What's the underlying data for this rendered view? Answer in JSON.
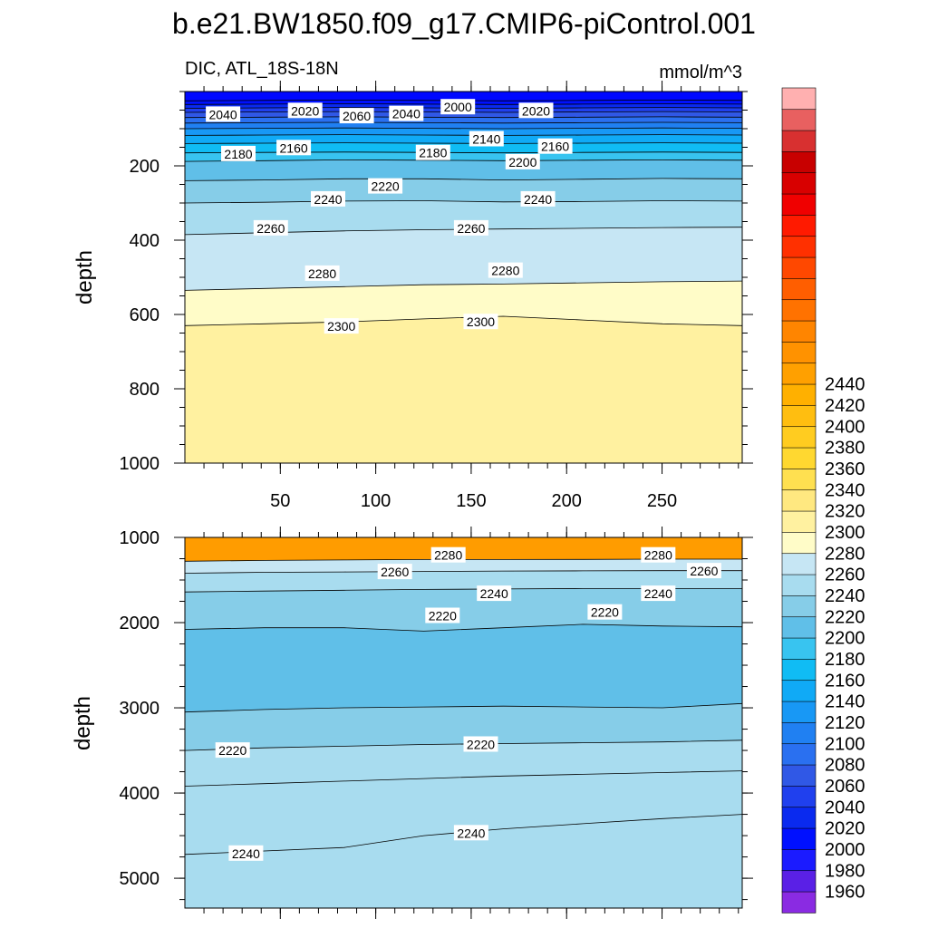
{
  "title": "b.e21.BW1850.f09_g17.CMIP6-piControl.001",
  "subtitle_left": "DIC, ATL_18S-18N",
  "subtitle_right": "mmol/m^3",
  "chart_data": [
    {
      "type": "contour",
      "name": "upper panel",
      "ylabel": "depth",
      "xlim": [
        0,
        292
      ],
      "ylim": [
        1000,
        0
      ],
      "x_ticks": [
        50,
        100,
        150,
        200,
        250
      ],
      "y_ticks": [
        200,
        400,
        600,
        800,
        1000
      ],
      "grid": false,
      "isolines": [
        {
          "value": 2000,
          "depths": [
            25,
            24,
            23,
            24,
            25,
            24,
            23,
            24
          ]
        },
        {
          "value": 2020,
          "depths": [
            35,
            34,
            33,
            34,
            35,
            34,
            33,
            34
          ]
        },
        {
          "value": 2040,
          "depths": [
            45,
            44,
            43,
            44,
            45,
            44,
            43,
            44
          ]
        },
        {
          "value": 2060,
          "depths": [
            56,
            55,
            54,
            55,
            56,
            55,
            54,
            55
          ]
        },
        {
          "value": 2080,
          "depths": [
            70,
            69,
            68,
            69,
            70,
            69,
            68,
            69
          ]
        },
        {
          "value": 2100,
          "depths": [
            85,
            84,
            83,
            84,
            85,
            84,
            83,
            84
          ]
        },
        {
          "value": 2120,
          "depths": [
            100,
            99,
            98,
            99,
            100,
            99,
            98,
            99
          ]
        },
        {
          "value": 2140,
          "depths": [
            118,
            117,
            116,
            117,
            118,
            117,
            116,
            117
          ]
        },
        {
          "value": 2160,
          "depths": [
            140,
            139,
            138,
            139,
            140,
            139,
            138,
            139
          ]
        },
        {
          "value": 2180,
          "depths": [
            165,
            164,
            163,
            164,
            165,
            164,
            163,
            164
          ]
        },
        {
          "value": 2200,
          "depths": [
            188,
            186,
            184,
            185,
            186,
            185,
            184,
            185
          ]
        },
        {
          "value": 2220,
          "depths": [
            240,
            238,
            235,
            235,
            238,
            236,
            234,
            235
          ]
        },
        {
          "value": 2240,
          "depths": [
            300,
            298,
            295,
            294,
            297,
            296,
            294,
            295
          ]
        },
        {
          "value": 2260,
          "depths": [
            385,
            380,
            375,
            372,
            370,
            368,
            366,
            365
          ]
        },
        {
          "value": 2280,
          "depths": [
            535,
            530,
            525,
            520,
            518,
            515,
            512,
            510
          ]
        },
        {
          "value": 2300,
          "depths": [
            630,
            625,
            620,
            612,
            605,
            615,
            625,
            630
          ]
        }
      ],
      "contour_labels": [
        {
          "text": "2040",
          "x": 20,
          "y": 62
        },
        {
          "text": "2020",
          "x": 63,
          "y": 52
        },
        {
          "text": "2060",
          "x": 90,
          "y": 66
        },
        {
          "text": "2040",
          "x": 116,
          "y": 60
        },
        {
          "text": "2000",
          "x": 143,
          "y": 42
        },
        {
          "text": "2020",
          "x": 184,
          "y": 52
        },
        {
          "text": "2180",
          "x": 28,
          "y": 168
        },
        {
          "text": "2160",
          "x": 57,
          "y": 152
        },
        {
          "text": "2180",
          "x": 130,
          "y": 165
        },
        {
          "text": "2140",
          "x": 158,
          "y": 128
        },
        {
          "text": "2200",
          "x": 177,
          "y": 190
        },
        {
          "text": "2160",
          "x": 194,
          "y": 148
        },
        {
          "text": "2220",
          "x": 105,
          "y": 255
        },
        {
          "text": "2240",
          "x": 75,
          "y": 290
        },
        {
          "text": "2240",
          "x": 185,
          "y": 290
        },
        {
          "text": "2260",
          "x": 45,
          "y": 368
        },
        {
          "text": "2260",
          "x": 150,
          "y": 368
        },
        {
          "text": "2280",
          "x": 72,
          "y": 490
        },
        {
          "text": "2280",
          "x": 168,
          "y": 482
        },
        {
          "text": "2300",
          "x": 82,
          "y": 632
        },
        {
          "text": "2300",
          "x": 155,
          "y": 620
        }
      ]
    },
    {
      "type": "contour",
      "name": "lower panel",
      "ylabel": "depth",
      "xlim": [
        0,
        292
      ],
      "ylim": [
        5350,
        1000
      ],
      "x_ticks": [
        50,
        100,
        150,
        200,
        250
      ],
      "y_ticks": [
        1000,
        2000,
        3000,
        4000,
        5000
      ],
      "grid": false,
      "isolines": [
        {
          "value": 2280,
          "depths": [
            1280,
            1270,
            1265,
            1260,
            1260,
            1258,
            1255,
            1255
          ]
        },
        {
          "value": 2260,
          "depths": [
            1420,
            1410,
            1405,
            1400,
            1395,
            1392,
            1390,
            1390
          ]
        },
        {
          "value": 2240,
          "depths": [
            1640,
            1630,
            1620,
            1610,
            1605,
            1600,
            1600,
            1600
          ]
        },
        {
          "value": 2220,
          "depths": [
            2080,
            2060,
            2060,
            2100,
            2060,
            2020,
            2040,
            2050
          ]
        },
        {
          "value": 2220,
          "depths": [
            3050,
            3020,
            3000,
            2990,
            2980,
            2990,
            3000,
            2950
          ]
        },
        {
          "value": 2240,
          "depths": [
            3500,
            3470,
            3450,
            3430,
            3420,
            3410,
            3400,
            3380
          ]
        },
        {
          "value": 2240,
          "depths": [
            3920,
            3890,
            3860,
            3830,
            3800,
            3780,
            3760,
            3740
          ]
        },
        {
          "value": 2240,
          "depths": [
            4720,
            4680,
            4640,
            4500,
            4420,
            4360,
            4300,
            4250
          ]
        }
      ],
      "contour_labels": [
        {
          "text": "2280",
          "x": 138,
          "y": 1210
        },
        {
          "text": "2280",
          "x": 248,
          "y": 1210
        },
        {
          "text": "2260",
          "x": 110,
          "y": 1405
        },
        {
          "text": "2260",
          "x": 272,
          "y": 1395
        },
        {
          "text": "2240",
          "x": 162,
          "y": 1660
        },
        {
          "text": "2240",
          "x": 248,
          "y": 1660
        },
        {
          "text": "2220",
          "x": 135,
          "y": 1920
        },
        {
          "text": "2220",
          "x": 220,
          "y": 1880
        },
        {
          "text": "2220",
          "x": 25,
          "y": 3500
        },
        {
          "text": "2220",
          "x": 155,
          "y": 3430
        },
        {
          "text": "2240",
          "x": 32,
          "y": 4710
        },
        {
          "text": "2240",
          "x": 150,
          "y": 4470
        }
      ]
    }
  ],
  "colorbar": {
    "levels_min": 1940,
    "level_step": 20,
    "colors": [
      "#8a2be2",
      "#5a20e6",
      "#1b1bff",
      "#0010ff",
      "#0a2aef",
      "#2040ee",
      "#3058e6",
      "#2a70f0",
      "#2080f2",
      "#1898f5",
      "#10aaf6",
      "#10bcf4",
      "#38c4f0",
      "#60bfe8",
      "#86cde8",
      "#a8dcef",
      "#c6e6f4",
      "#fffcc8",
      "#fff1a0",
      "#ffe880",
      "#ffe050",
      "#ffd830",
      "#ffcc20",
      "#ffbe10",
      "#ffb000",
      "#ffa000",
      "#ff9200",
      "#ff8500",
      "#ff7200",
      "#ff5e00",
      "#ff4800",
      "#ff3000",
      "#ff1a00",
      "#f00000",
      "#d80000",
      "#c80000",
      "#d83030",
      "#e86060",
      "#ffb0b0"
    ],
    "labels": [
      "1960",
      "1980",
      "2000",
      "2020",
      "2040",
      "2060",
      "2080",
      "2100",
      "2120",
      "2140",
      "2160",
      "2180",
      "2200",
      "2220",
      "2240",
      "2260",
      "2280",
      "2300",
      "2320",
      "2340",
      "2360",
      "2380",
      "2400",
      "2420",
      "2440"
    ]
  }
}
